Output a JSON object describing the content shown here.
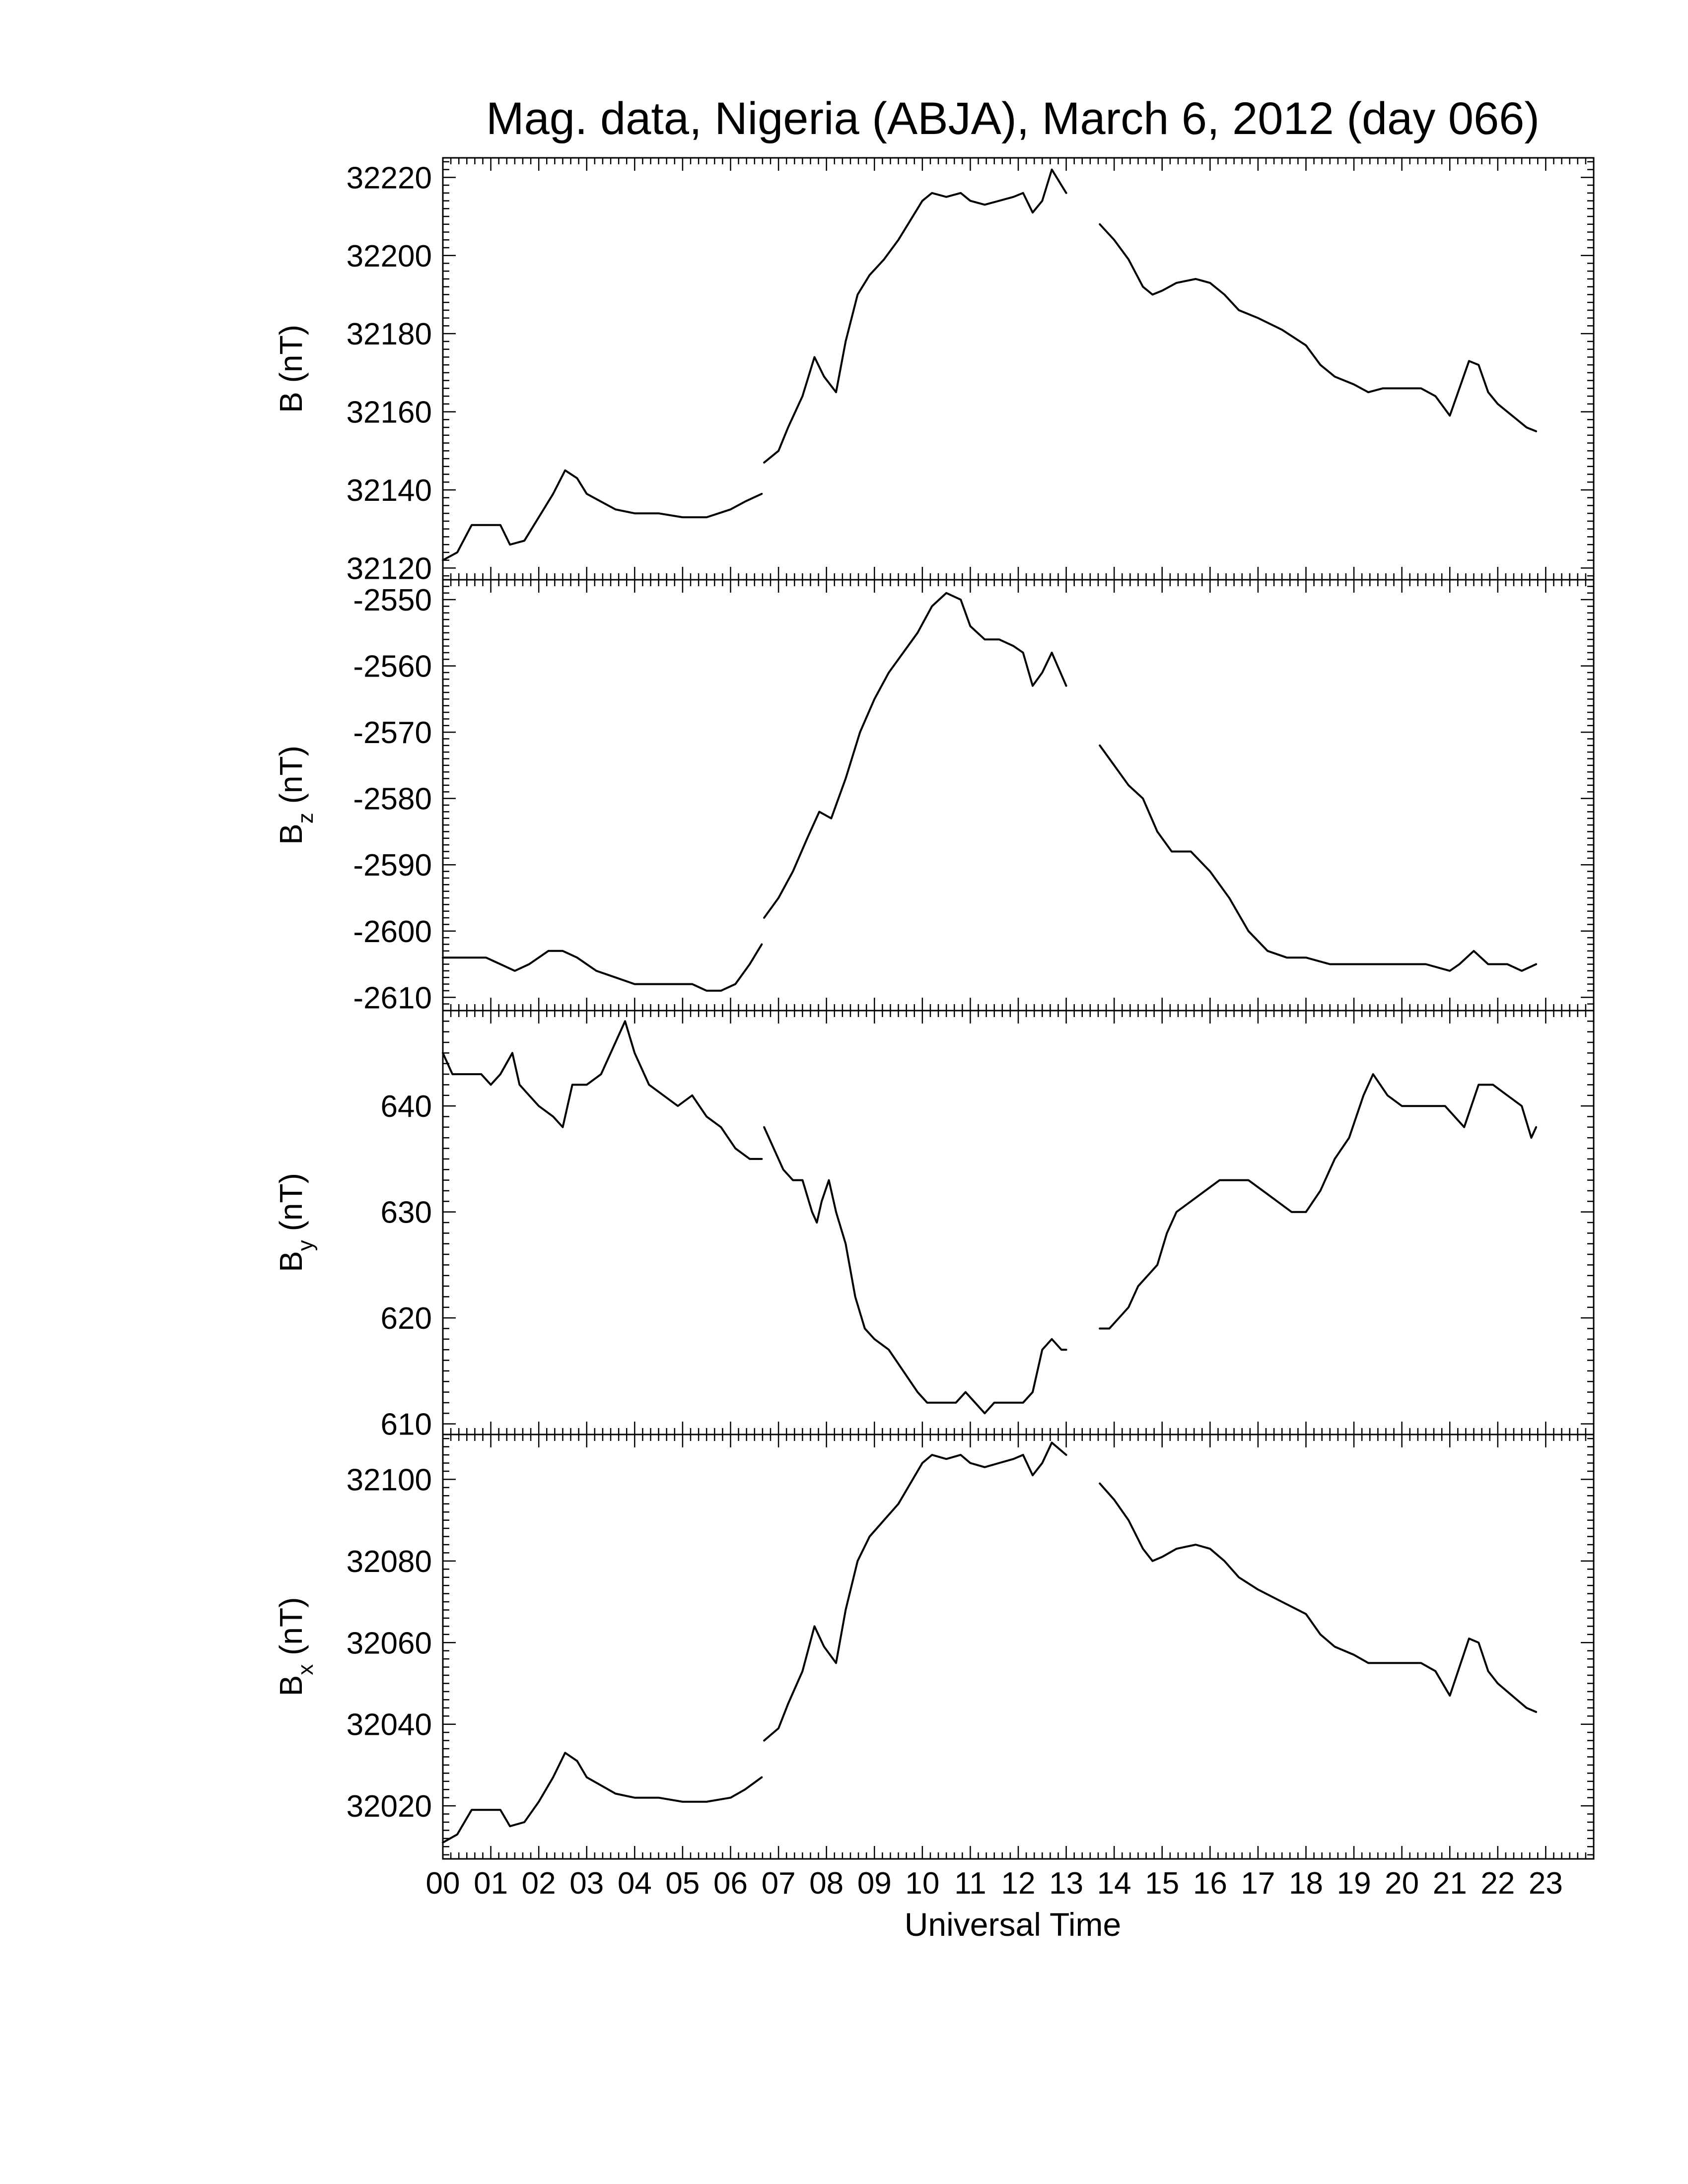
{
  "title": "Mag. data, Nigeria (ABJA), March 6, 2012 (day 066)",
  "xlabel": "Universal Time",
  "x_tick_labels": [
    "00",
    "01",
    "02",
    "03",
    "04",
    "05",
    "06",
    "07",
    "08",
    "09",
    "10",
    "11",
    "12",
    "13",
    "14",
    "15",
    "16",
    "17",
    "18",
    "19",
    "20",
    "21",
    "22",
    "23"
  ],
  "chart_data": [
    {
      "type": "line",
      "ylabel_main": "B",
      "ylabel_sub": "",
      "ylabel_unit": "(nT)",
      "ylim": [
        32117,
        32225
      ],
      "y_ticks": [
        32120,
        32140,
        32160,
        32180,
        32200,
        32220
      ],
      "xlim": [
        0,
        24
      ],
      "series": [
        {
          "x": [
            0,
            0.3,
            0.6,
            0.9,
            1.2,
            1.4,
            1.7,
            2.0,
            2.3,
            2.55,
            2.8,
            3.0,
            3.3,
            3.6,
            4.0,
            4.5,
            5.0,
            5.5,
            6.0,
            6.3,
            6.65
          ],
          "y": [
            32122,
            32124,
            32131,
            32131,
            32131,
            32126,
            32127,
            32133,
            32139,
            32145,
            32143,
            32139,
            32137,
            32135,
            32134,
            32134,
            32133,
            32133,
            32135,
            32137,
            32139
          ]
        },
        {
          "x": [
            6.7,
            7.0,
            7.2,
            7.5,
            7.75,
            7.95,
            8.2,
            8.4,
            8.65,
            8.9,
            9.2,
            9.5,
            9.8,
            10.0,
            10.2,
            10.5,
            10.8,
            11.0,
            11.3,
            11.6,
            11.9,
            12.1,
            12.3,
            12.5,
            12.7,
            12.9,
            13.0
          ],
          "y": [
            32147,
            32150,
            32156,
            32164,
            32174,
            32169,
            32165,
            32178,
            32190,
            32195,
            32199,
            32204,
            32210,
            32214,
            32216,
            32215,
            32216,
            32214,
            32213,
            32214,
            32215,
            32216,
            32211,
            32214,
            32222,
            32218,
            32216
          ]
        },
        {
          "x": [
            13.7,
            14.0,
            14.3,
            14.6,
            14.8,
            15.0,
            15.3,
            15.7,
            16.0,
            16.3,
            16.6,
            17.0,
            17.5,
            18.0,
            18.3,
            18.6,
            19.0,
            19.3,
            19.6,
            20.0,
            20.4,
            20.7,
            21.0,
            21.2,
            21.4,
            21.6,
            21.8,
            22.0,
            22.3,
            22.6,
            22.8
          ],
          "y": [
            32208,
            32204,
            32199,
            32192,
            32190,
            32191,
            32193,
            32194,
            32193,
            32190,
            32186,
            32184,
            32181,
            32177,
            32172,
            32169,
            32167,
            32165,
            32166,
            32166,
            32166,
            32164,
            32159,
            32166,
            32173,
            32172,
            32165,
            32162,
            32159,
            32156,
            32155
          ]
        }
      ]
    },
    {
      "type": "line",
      "ylabel_main": "B",
      "ylabel_sub": "z",
      "ylabel_unit": "(nT)",
      "ylim": [
        -2612,
        -2547
      ],
      "y_ticks": [
        -2550,
        -2560,
        -2570,
        -2580,
        -2590,
        -2600,
        -2610
      ],
      "xlim": [
        0,
        24
      ],
      "series": [
        {
          "x": [
            0,
            0.3,
            0.6,
            0.9,
            1.2,
            1.5,
            1.8,
            2.2,
            2.5,
            2.8,
            3.2,
            3.6,
            4.0,
            4.4,
            4.8,
            5.2,
            5.5,
            5.8,
            6.1,
            6.4,
            6.65
          ],
          "y": [
            -2604,
            -2604,
            -2604,
            -2604,
            -2605,
            -2606,
            -2605,
            -2603,
            -2603,
            -2604,
            -2606,
            -2607,
            -2608,
            -2608,
            -2608,
            -2608,
            -2609,
            -2609,
            -2608,
            -2605,
            -2602
          ]
        },
        {
          "x": [
            6.7,
            7.0,
            7.3,
            7.6,
            7.85,
            8.1,
            8.4,
            8.7,
            9.0,
            9.3,
            9.6,
            9.9,
            10.2,
            10.5,
            10.8,
            11.0,
            11.3,
            11.6,
            11.9,
            12.1,
            12.3,
            12.5,
            12.7,
            13.0
          ],
          "y": [
            -2598,
            -2595,
            -2591,
            -2586,
            -2582,
            -2583,
            -2577,
            -2570,
            -2565,
            -2561,
            -2558,
            -2555,
            -2551,
            -2549,
            -2550,
            -2554,
            -2556,
            -2556,
            -2557,
            -2558,
            -2563,
            -2561,
            -2558,
            -2563
          ]
        },
        {
          "x": [
            13.7,
            14.0,
            14.3,
            14.6,
            14.9,
            15.2,
            15.6,
            16.0,
            16.4,
            16.8,
            17.2,
            17.6,
            18.0,
            18.5,
            19.0,
            19.5,
            20.0,
            20.5,
            21.0,
            21.2,
            21.5,
            21.8,
            22.2,
            22.5,
            22.8
          ],
          "y": [
            -2572,
            -2575,
            -2578,
            -2580,
            -2585,
            -2588,
            -2588,
            -2591,
            -2595,
            -2600,
            -2603,
            -2604,
            -2604,
            -2605,
            -2605,
            -2605,
            -2605,
            -2605,
            -2606,
            -2605,
            -2603,
            -2605,
            -2605,
            -2606,
            -2605
          ]
        }
      ]
    },
    {
      "type": "line",
      "ylabel_main": "B",
      "ylabel_sub": "y",
      "ylabel_unit": "(nT)",
      "ylim": [
        609,
        649
      ],
      "y_ticks": [
        610,
        620,
        630,
        640
      ],
      "xlim": [
        0,
        24
      ],
      "series": [
        {
          "x": [
            0,
            0.2,
            0.4,
            0.6,
            0.8,
            1.0,
            1.2,
            1.45,
            1.6,
            1.8,
            2.0,
            2.3,
            2.5,
            2.7,
            3.0,
            3.3,
            3.6,
            3.8,
            4.0,
            4.3,
            4.6,
            4.9,
            5.2,
            5.5,
            5.8,
            6.1,
            6.4,
            6.65
          ],
          "y": [
            645,
            643,
            643,
            643,
            643,
            642,
            643,
            645,
            642,
            641,
            640,
            639,
            638,
            642,
            642,
            643,
            646,
            648,
            645,
            642,
            641,
            640,
            641,
            639,
            638,
            636,
            635,
            635
          ]
        },
        {
          "x": [
            6.7,
            6.9,
            7.1,
            7.3,
            7.5,
            7.7,
            7.8,
            7.9,
            8.05,
            8.2,
            8.4,
            8.6,
            8.8,
            9.0,
            9.3,
            9.6,
            9.9,
            10.1,
            10.3,
            10.5,
            10.7,
            10.9,
            11.1,
            11.3,
            11.5,
            11.7,
            11.9,
            12.1,
            12.3,
            12.5,
            12.7,
            12.9,
            13.0
          ],
          "y": [
            638,
            636,
            634,
            633,
            633,
            630,
            629,
            631,
            633,
            630,
            627,
            622,
            619,
            618,
            617,
            615,
            613,
            612,
            612,
            612,
            612,
            613,
            612,
            611,
            612,
            612,
            612,
            612,
            613,
            617,
            618,
            617,
            617
          ]
        },
        {
          "x": [
            13.7,
            13.9,
            14.1,
            14.3,
            14.5,
            14.7,
            14.9,
            15.1,
            15.3,
            15.6,
            15.9,
            16.2,
            16.5,
            16.8,
            17.1,
            17.4,
            17.7,
            18.0,
            18.3,
            18.6,
            18.9,
            19.2,
            19.4,
            19.7,
            20.0,
            20.3,
            20.6,
            20.9,
            21.1,
            21.3,
            21.6,
            21.9,
            22.2,
            22.5,
            22.7,
            22.8
          ],
          "y": [
            619,
            619,
            620,
            621,
            623,
            624,
            625,
            628,
            630,
            631,
            632,
            633,
            633,
            633,
            632,
            631,
            630,
            630,
            632,
            635,
            637,
            641,
            643,
            641,
            640,
            640,
            640,
            640,
            639,
            638,
            642,
            642,
            641,
            640,
            637,
            638
          ]
        }
      ]
    },
    {
      "type": "line",
      "ylabel_main": "B",
      "ylabel_sub": "x",
      "ylabel_unit": "(nT)",
      "ylim": [
        32007,
        32111
      ],
      "y_ticks": [
        32020,
        32040,
        32060,
        32080,
        32100
      ],
      "xlim": [
        0,
        24
      ],
      "series": [
        {
          "x": [
            0,
            0.3,
            0.6,
            0.9,
            1.2,
            1.4,
            1.7,
            2.0,
            2.3,
            2.55,
            2.8,
            3.0,
            3.3,
            3.6,
            4.0,
            4.5,
            5.0,
            5.5,
            6.0,
            6.3,
            6.65
          ],
          "y": [
            32011,
            32013,
            32019,
            32019,
            32019,
            32015,
            32016,
            32021,
            32027,
            32033,
            32031,
            32027,
            32025,
            32023,
            32022,
            32022,
            32021,
            32021,
            32022,
            32024,
            32027
          ]
        },
        {
          "x": [
            6.7,
            7.0,
            7.2,
            7.5,
            7.75,
            7.95,
            8.2,
            8.4,
            8.65,
            8.9,
            9.2,
            9.5,
            9.8,
            10.0,
            10.2,
            10.5,
            10.8,
            11.0,
            11.3,
            11.6,
            11.9,
            12.1,
            12.3,
            12.5,
            12.7,
            12.9,
            13.0
          ],
          "y": [
            32036,
            32039,
            32045,
            32053,
            32064,
            32059,
            32055,
            32068,
            32080,
            32086,
            32090,
            32094,
            32100,
            32104,
            32106,
            32105,
            32106,
            32104,
            32103,
            32104,
            32105,
            32106,
            32101,
            32104,
            32109,
            32107,
            32106
          ]
        },
        {
          "x": [
            13.7,
            14.0,
            14.3,
            14.6,
            14.8,
            15.0,
            15.3,
            15.7,
            16.0,
            16.3,
            16.6,
            17.0,
            17.5,
            18.0,
            18.3,
            18.6,
            19.0,
            19.3,
            19.6,
            20.0,
            20.4,
            20.7,
            21.0,
            21.2,
            21.4,
            21.6,
            21.8,
            22.0,
            22.3,
            22.6,
            22.8
          ],
          "y": [
            32099,
            32095,
            32090,
            32083,
            32080,
            32081,
            32083,
            32084,
            32083,
            32080,
            32076,
            32073,
            32070,
            32067,
            32062,
            32059,
            32057,
            32055,
            32055,
            32055,
            32055,
            32053,
            32047,
            32054,
            32061,
            32060,
            32053,
            32050,
            32047,
            32044,
            32043
          ]
        }
      ]
    }
  ]
}
